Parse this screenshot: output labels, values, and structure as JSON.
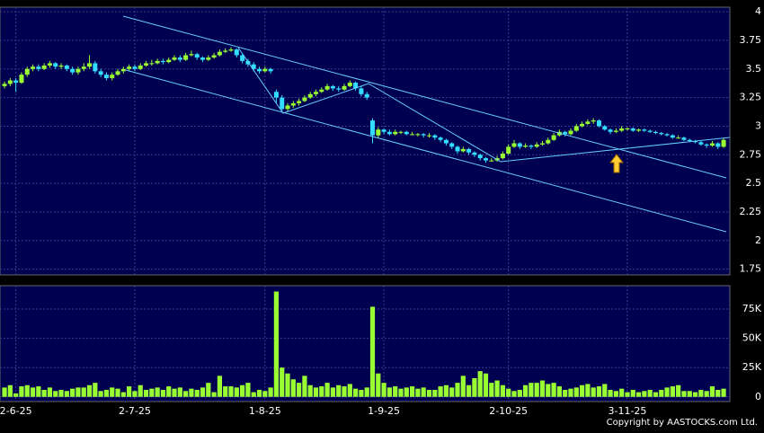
{
  "chart_data": [
    {
      "type": "candlestick",
      "up_color": "#99ff33",
      "down_color": "#33ddff",
      "grid": true,
      "xlim": [
        -0.8,
        128.1
      ],
      "ylim": [
        1.7,
        4.04
      ],
      "yticks": [
        4,
        3.75,
        3.5,
        3.25,
        3,
        2.75,
        2.5,
        2.25,
        2,
        1.75
      ],
      "xticks": [
        {
          "value": 2,
          "label": "2-6-25"
        },
        {
          "value": 23,
          "label": "2-7-25"
        },
        {
          "value": 46,
          "label": "1-8-25"
        },
        {
          "value": 67,
          "label": "1-9-25"
        },
        {
          "value": 89,
          "label": "2-10-25"
        },
        {
          "value": 110,
          "label": "3-11-25"
        }
      ],
      "open": [
        3.35,
        3.37,
        3.4,
        3.38,
        3.45,
        3.5,
        3.52,
        3.5,
        3.53,
        3.55,
        3.52,
        3.53,
        3.5,
        3.47,
        3.5,
        3.52,
        3.55,
        3.48,
        3.45,
        3.42,
        3.45,
        3.48,
        3.5,
        3.52,
        3.5,
        3.53,
        3.55,
        3.55,
        3.57,
        3.56,
        3.58,
        3.6,
        3.58,
        3.62,
        3.63,
        3.6,
        3.58,
        3.6,
        3.62,
        3.65,
        3.66,
        3.67,
        3.62,
        3.57,
        3.54,
        3.5,
        3.48,
        3.5,
        3.3,
        3.25,
        3.15,
        3.18,
        3.2,
        3.22,
        3.25,
        3.28,
        3.3,
        3.32,
        3.35,
        3.33,
        3.32,
        3.35,
        3.38,
        3.33,
        3.28,
        3.05,
        2.92,
        2.97,
        2.95,
        2.93,
        2.95,
        2.95,
        2.93,
        2.93,
        2.93,
        2.92,
        2.92,
        2.9,
        2.88,
        2.85,
        2.82,
        2.78,
        2.8,
        2.77,
        2.75,
        2.72,
        2.7,
        2.7,
        2.72,
        2.76,
        2.82,
        2.85,
        2.82,
        2.83,
        2.82,
        2.84,
        2.85,
        2.88,
        2.92,
        2.95,
        2.93,
        2.96,
        3.0,
        3.02,
        3.04,
        3.05,
        3.0,
        2.97,
        2.95,
        2.96,
        2.98,
        2.98,
        2.96,
        2.97,
        2.96,
        2.95,
        2.94,
        2.93,
        2.92,
        2.9,
        2.9,
        2.88,
        2.87,
        2.86,
        2.84,
        2.83,
        2.85,
        2.82
      ],
      "high": [
        3.39,
        3.42,
        3.42,
        3.47,
        3.52,
        3.54,
        3.54,
        3.55,
        3.57,
        3.56,
        3.55,
        3.54,
        3.52,
        3.52,
        3.55,
        3.62,
        3.57,
        3.5,
        3.47,
        3.47,
        3.5,
        3.52,
        3.54,
        3.54,
        3.55,
        3.57,
        3.58,
        3.59,
        3.59,
        3.6,
        3.62,
        3.62,
        3.64,
        3.66,
        3.64,
        3.61,
        3.62,
        3.64,
        3.67,
        3.68,
        3.69,
        3.68,
        3.63,
        3.59,
        3.56,
        3.52,
        3.52,
        3.51,
        3.32,
        3.27,
        3.2,
        3.22,
        3.24,
        3.27,
        3.3,
        3.32,
        3.34,
        3.37,
        3.36,
        3.35,
        3.37,
        3.4,
        3.39,
        3.35,
        3.3,
        3.07,
        2.99,
        2.98,
        2.97,
        2.97,
        2.96,
        2.96,
        2.95,
        2.94,
        2.94,
        2.94,
        2.93,
        2.91,
        2.89,
        2.86,
        2.83,
        2.82,
        2.81,
        2.78,
        2.76,
        2.73,
        2.72,
        2.74,
        2.78,
        2.84,
        2.88,
        2.86,
        2.85,
        2.84,
        2.86,
        2.87,
        2.9,
        2.94,
        2.97,
        2.96,
        2.98,
        3.02,
        3.04,
        3.06,
        3.07,
        3.06,
        3.01,
        2.98,
        2.98,
        3.0,
        2.99,
        2.99,
        2.98,
        2.98,
        2.97,
        2.96,
        2.95,
        2.94,
        2.93,
        2.92,
        2.91,
        2.89,
        2.88,
        2.87,
        2.85,
        2.87,
        2.86,
        2.9
      ],
      "low": [
        3.33,
        3.35,
        3.3,
        3.37,
        3.43,
        3.48,
        3.48,
        3.49,
        3.51,
        3.5,
        3.5,
        3.48,
        3.45,
        3.45,
        3.48,
        3.5,
        3.46,
        3.43,
        3.4,
        3.4,
        3.44,
        3.46,
        3.48,
        3.48,
        3.49,
        3.52,
        3.53,
        3.54,
        3.54,
        3.55,
        3.57,
        3.56,
        3.57,
        3.61,
        3.58,
        3.56,
        3.57,
        3.59,
        3.61,
        3.64,
        3.65,
        3.6,
        3.55,
        3.52,
        3.48,
        3.46,
        3.47,
        3.46,
        3.2,
        3.12,
        3.13,
        3.16,
        3.18,
        3.21,
        3.24,
        3.26,
        3.29,
        3.31,
        3.31,
        3.3,
        3.31,
        3.34,
        3.31,
        3.26,
        3.23,
        2.85,
        2.9,
        2.93,
        2.92,
        2.92,
        2.93,
        2.92,
        2.92,
        2.91,
        2.9,
        2.9,
        2.88,
        2.86,
        2.83,
        2.8,
        2.76,
        2.77,
        2.75,
        2.73,
        2.7,
        2.68,
        2.69,
        2.69,
        2.71,
        2.75,
        2.81,
        2.8,
        2.81,
        2.8,
        2.81,
        2.83,
        2.84,
        2.87,
        2.91,
        2.91,
        2.92,
        2.95,
        2.99,
        3.01,
        3.02,
        2.99,
        2.96,
        2.93,
        2.94,
        2.95,
        2.96,
        2.95,
        2.95,
        2.95,
        2.94,
        2.93,
        2.92,
        2.91,
        2.89,
        2.89,
        2.87,
        2.86,
        2.85,
        2.83,
        2.81,
        2.82,
        2.8,
        2.81
      ],
      "close": [
        3.37,
        3.4,
        3.38,
        3.45,
        3.5,
        3.52,
        3.5,
        3.53,
        3.55,
        3.52,
        3.53,
        3.5,
        3.47,
        3.5,
        3.52,
        3.55,
        3.48,
        3.45,
        3.42,
        3.45,
        3.48,
        3.5,
        3.52,
        3.5,
        3.53,
        3.55,
        3.55,
        3.57,
        3.56,
        3.58,
        3.6,
        3.58,
        3.62,
        3.63,
        3.6,
        3.58,
        3.6,
        3.62,
        3.65,
        3.66,
        3.67,
        3.62,
        3.57,
        3.54,
        3.5,
        3.48,
        3.5,
        3.48,
        3.25,
        3.15,
        3.18,
        3.2,
        3.22,
        3.25,
        3.28,
        3.3,
        3.32,
        3.35,
        3.33,
        3.32,
        3.35,
        3.38,
        3.33,
        3.28,
        3.25,
        2.92,
        2.97,
        2.95,
        2.93,
        2.95,
        2.95,
        2.93,
        2.93,
        2.93,
        2.92,
        2.92,
        2.9,
        2.88,
        2.85,
        2.82,
        2.78,
        2.8,
        2.77,
        2.75,
        2.72,
        2.7,
        2.7,
        2.72,
        2.76,
        2.82,
        2.85,
        2.82,
        2.83,
        2.82,
        2.84,
        2.85,
        2.88,
        2.92,
        2.95,
        2.93,
        2.96,
        3.0,
        3.02,
        3.04,
        3.05,
        3.0,
        2.97,
        2.95,
        2.96,
        2.98,
        2.98,
        2.96,
        2.97,
        2.96,
        2.95,
        2.94,
        2.93,
        2.92,
        2.9,
        2.9,
        2.88,
        2.87,
        2.86,
        2.84,
        2.83,
        2.85,
        2.82,
        2.88
      ]
    },
    {
      "type": "bar",
      "color": "#99ff33",
      "grid": true,
      "xlim": [
        -0.8,
        128.1
      ],
      "ylim": [
        -4000,
        95000
      ],
      "yticks": [
        {
          "value": 75000,
          "label": "75K"
        },
        {
          "value": 50000,
          "label": "50K"
        },
        {
          "value": 25000,
          "label": "25K"
        },
        0
      ],
      "values": [
        8000,
        10000,
        3000,
        9000,
        10000,
        8000,
        9000,
        6000,
        8000,
        5000,
        6000,
        5000,
        7000,
        8000,
        8000,
        10000,
        12000,
        5000,
        6000,
        8000,
        7000,
        4000,
        9000,
        5000,
        10000,
        6000,
        7000,
        8000,
        6000,
        9000,
        7000,
        8000,
        5000,
        7000,
        6000,
        8000,
        12000,
        4000,
        18000,
        9000,
        9000,
        8000,
        10000,
        12000,
        4000,
        6000,
        5000,
        8000,
        90000,
        25000,
        20000,
        15000,
        12000,
        18000,
        10000,
        8000,
        9000,
        12000,
        8000,
        10000,
        9000,
        11000,
        7000,
        6000,
        8000,
        77000,
        20000,
        12000,
        8000,
        9000,
        7000,
        8000,
        9000,
        7000,
        8000,
        6000,
        6000,
        9000,
        10000,
        8000,
        12000,
        18000,
        10000,
        16000,
        22000,
        20000,
        12000,
        14000,
        10000,
        7000,
        5000,
        6000,
        10000,
        12000,
        12000,
        14000,
        11000,
        12000,
        9000,
        6000,
        7000,
        8000,
        10000,
        11000,
        8000,
        9000,
        11000,
        6000,
        5000,
        7000,
        4000,
        6000,
        4000,
        5000,
        6000,
        4000,
        6000,
        8000,
        9000,
        10000,
        5000,
        5000,
        4000,
        6000,
        5000,
        9000,
        6000,
        7000
      ]
    }
  ],
  "copyright": "Copyright by AASTOCKS.com Ltd."
}
